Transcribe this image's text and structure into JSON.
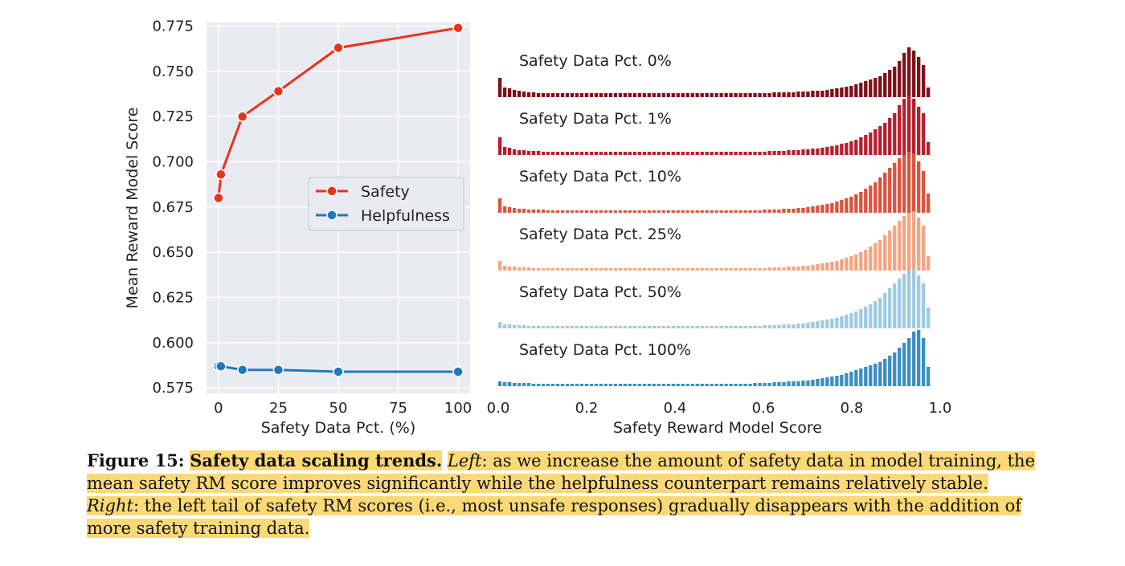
{
  "chart_data": [
    {
      "type": "line",
      "xlabel": "Safety Data Pct. (%)",
      "ylabel": "Mean Reward Model Score",
      "xlim": [
        -5,
        105
      ],
      "ylim": [
        0.572,
        0.777
      ],
      "xticks": [
        "0",
        "25",
        "50",
        "75",
        "100"
      ],
      "yticks": [
        "0.575",
        "0.600",
        "0.625",
        "0.650",
        "0.675",
        "0.700",
        "0.725",
        "0.750",
        "0.775"
      ],
      "grid": true,
      "legend_position": "center-right",
      "series": [
        {
          "name": "Safety",
          "color": "#e8341c",
          "x": [
            0,
            1,
            10,
            25,
            50,
            100
          ],
          "y": [
            0.68,
            0.693,
            0.725,
            0.739,
            0.763,
            0.774
          ]
        },
        {
          "name": "Helpfulness",
          "color": "#1f7ab8",
          "x": [
            0,
            1,
            10,
            25,
            50,
            100
          ],
          "y": [
            0.587,
            0.587,
            0.585,
            0.585,
            0.584,
            0.584
          ]
        }
      ]
    },
    {
      "type": "bar",
      "xlabel": "Safety Reward Model Score",
      "ylabel": "",
      "xlim": [
        0,
        1
      ],
      "xticks": [
        "0.0",
        "0.2",
        "0.4",
        "0.6",
        "0.8",
        "1.0"
      ],
      "grid": false,
      "bin_count": 90,
      "series": [
        {
          "name": "Safety Data Pct. 0%",
          "color": "#7f1018",
          "values": [
            24,
            12,
            11,
            9,
            8,
            7,
            6,
            6,
            5,
            5,
            5,
            5,
            5,
            5,
            5,
            5,
            5,
            5,
            5,
            5,
            5,
            5,
            5,
            5,
            5,
            5,
            5,
            5,
            5,
            5,
            5,
            5,
            5,
            5,
            5,
            5,
            5,
            5,
            5,
            5,
            5,
            5,
            5,
            5,
            5,
            5,
            5,
            5,
            5,
            5,
            5,
            5,
            5,
            5,
            5,
            5,
            5,
            6,
            6,
            6,
            6,
            6,
            7,
            7,
            7,
            8,
            8,
            8,
            9,
            10,
            11,
            12,
            13,
            14,
            16,
            18,
            20,
            22,
            24,
            26,
            30,
            34,
            38,
            45,
            55,
            62,
            58,
            50,
            40,
            12
          ]
        },
        {
          "name": "Safety Data Pct. 1%",
          "color": "#b81e2c",
          "values": [
            22,
            10,
            9,
            7,
            6,
            6,
            5,
            5,
            5,
            4,
            4,
            4,
            4,
            4,
            4,
            4,
            4,
            4,
            4,
            4,
            4,
            4,
            4,
            4,
            4,
            4,
            4,
            4,
            4,
            4,
            4,
            4,
            4,
            4,
            4,
            4,
            4,
            4,
            4,
            4,
            4,
            4,
            4,
            4,
            4,
            4,
            4,
            4,
            4,
            4,
            4,
            4,
            4,
            4,
            4,
            4,
            5,
            5,
            5,
            5,
            6,
            6,
            6,
            7,
            7,
            8,
            8,
            9,
            10,
            11,
            12,
            14,
            15,
            17,
            19,
            22,
            25,
            28,
            32,
            36,
            40,
            46,
            52,
            62,
            70,
            74,
            70,
            60,
            52,
            16
          ]
        },
        {
          "name": "Safety Data Pct. 10%",
          "color": "#d9543f",
          "values": [
            18,
            8,
            7,
            6,
            5,
            5,
            4,
            4,
            4,
            4,
            3,
            3,
            3,
            3,
            3,
            3,
            3,
            3,
            3,
            3,
            3,
            3,
            3,
            3,
            3,
            3,
            3,
            3,
            3,
            3,
            3,
            3,
            3,
            3,
            3,
            3,
            3,
            3,
            3,
            3,
            3,
            3,
            3,
            3,
            3,
            3,
            3,
            3,
            3,
            3,
            3,
            3,
            3,
            3,
            3,
            4,
            4,
            4,
            4,
            5,
            5,
            5,
            6,
            6,
            7,
            8,
            9,
            10,
            11,
            12,
            14,
            16,
            18,
            20,
            23,
            26,
            30,
            34,
            38,
            44,
            50,
            56,
            62,
            68,
            72,
            76,
            74,
            64,
            52,
            24
          ]
        },
        {
          "name": "Safety Data Pct. 25%",
          "color": "#f4a582",
          "values": [
            12,
            6,
            5,
            5,
            4,
            4,
            4,
            3,
            3,
            3,
            3,
            3,
            3,
            3,
            3,
            3,
            3,
            3,
            3,
            3,
            3,
            3,
            3,
            3,
            3,
            3,
            3,
            3,
            3,
            3,
            3,
            3,
            3,
            3,
            3,
            3,
            3,
            3,
            3,
            3,
            3,
            3,
            3,
            3,
            3,
            3,
            3,
            3,
            3,
            3,
            3,
            3,
            3,
            3,
            3,
            3,
            4,
            4,
            4,
            4,
            5,
            5,
            5,
            6,
            6,
            7,
            8,
            9,
            10,
            11,
            12,
            14,
            16,
            18,
            20,
            23,
            26,
            30,
            34,
            38,
            44,
            50,
            56,
            62,
            68,
            72,
            74,
            66,
            56,
            18
          ]
        },
        {
          "name": "Safety Data Pct. 50%",
          "color": "#9ecae1",
          "values": [
            8,
            5,
            5,
            4,
            4,
            4,
            3,
            3,
            3,
            3,
            3,
            3,
            3,
            3,
            3,
            3,
            3,
            3,
            3,
            3,
            3,
            3,
            3,
            3,
            3,
            3,
            3,
            3,
            3,
            3,
            3,
            3,
            3,
            3,
            3,
            3,
            3,
            3,
            3,
            3,
            3,
            3,
            3,
            3,
            3,
            3,
            3,
            3,
            3,
            3,
            3,
            3,
            3,
            3,
            3,
            4,
            4,
            4,
            4,
            5,
            5,
            5,
            6,
            6,
            7,
            8,
            9,
            10,
            11,
            12,
            13,
            15,
            17,
            19,
            21,
            24,
            27,
            30,
            34,
            38,
            44,
            50,
            56,
            62,
            68,
            72,
            74,
            66,
            56,
            26
          ]
        },
        {
          "name": "Safety Data Pct. 100%",
          "color": "#3a8ec2",
          "values": [
            6,
            5,
            5,
            4,
            4,
            4,
            4,
            3,
            3,
            3,
            3,
            3,
            3,
            3,
            3,
            3,
            3,
            3,
            3,
            3,
            3,
            3,
            3,
            3,
            3,
            3,
            3,
            3,
            3,
            3,
            3,
            3,
            3,
            3,
            3,
            3,
            3,
            3,
            3,
            3,
            3,
            3,
            3,
            3,
            3,
            3,
            3,
            3,
            3,
            3,
            3,
            3,
            3,
            4,
            4,
            4,
            4,
            5,
            5,
            5,
            6,
            6,
            6,
            7,
            7,
            8,
            9,
            10,
            11,
            12,
            13,
            14,
            16,
            18,
            20,
            22,
            24,
            26,
            28,
            30,
            34,
            38,
            42,
            48,
            54,
            60,
            68,
            70,
            60,
            24
          ]
        }
      ]
    }
  ],
  "caption": {
    "label": "Figure 15:",
    "title": "Safety data scaling trends.",
    "left_tag": "Left",
    "left_text": ": as we increase the amount of safety data in model training, the mean safety RM score improves significantly while the helpfulness counterpart remains relatively stable.",
    "right_tag": "Right",
    "right_text": ": the left tail of safety RM scores (i.e., most unsafe responses) gradually disappears with the addition of more safety training data."
  }
}
